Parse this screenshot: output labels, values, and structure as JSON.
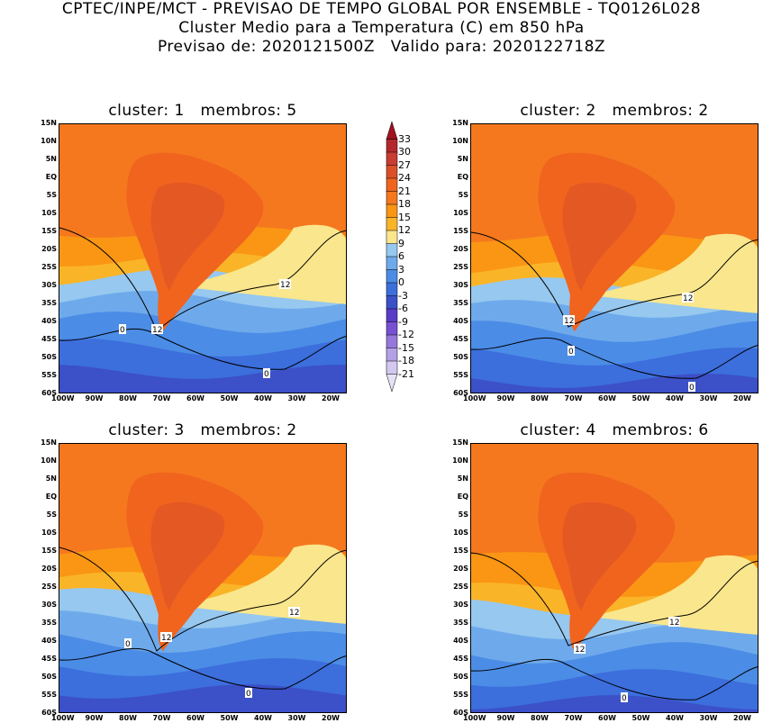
{
  "header": {
    "line1": "CPTEC/INPE/MCT - PREVISAO DE TEMPO GLOBAL POR ENSEMBLE - TQ0126L028",
    "line2": "Cluster Medio para a Temperatura (C) em 850 hPa",
    "line3": "Previsao de: 2020121500Z   Valido para: 2020122718Z"
  },
  "panels": [
    {
      "title": "cluster: 1   membros: 5",
      "labels": [
        "12",
        "12",
        "0",
        "0"
      ]
    },
    {
      "title": "cluster: 2   membros: 2",
      "labels": [
        "12",
        "12",
        "0",
        "0"
      ]
    },
    {
      "title": "cluster: 3   membros: 2",
      "labels": [
        "12",
        "12",
        "0",
        "0"
      ]
    },
    {
      "title": "cluster: 4   membros: 6",
      "labels": [
        "12",
        "12",
        "0"
      ]
    }
  ],
  "axes": {
    "lat_labels": [
      "15N",
      "10N",
      "5N",
      "EQ",
      "5S",
      "10S",
      "15S",
      "20S",
      "25S",
      "30S",
      "35S",
      "40S",
      "45S",
      "50S",
      "55S",
      "60S"
    ],
    "lon_labels": [
      "100W",
      "90W",
      "80W",
      "70W",
      "60W",
      "50W",
      "40W",
      "30W",
      "20W"
    ]
  },
  "colorbar": {
    "labels": [
      "33",
      "30",
      "27",
      "24",
      "21",
      "18",
      "15",
      "12",
      "9",
      "6",
      "3",
      "0",
      "-3",
      "-6",
      "-9",
      "-12",
      "-15",
      "-18",
      "-21"
    ],
    "colors": [
      "#a0141e",
      "#b4282d",
      "#c83c32",
      "#dc5028",
      "#f0641e",
      "#f5781e",
      "#fa9614",
      "#fab428",
      "#fae68c",
      "#96c8f0",
      "#6eaaeb",
      "#4b8ce6",
      "#3c6edc",
      "#3c50c8",
      "#5a3cc8",
      "#7850d2",
      "#9678dc",
      "#b4a0e6",
      "#d2c8f0",
      "#e6e1f5"
    ]
  }
}
